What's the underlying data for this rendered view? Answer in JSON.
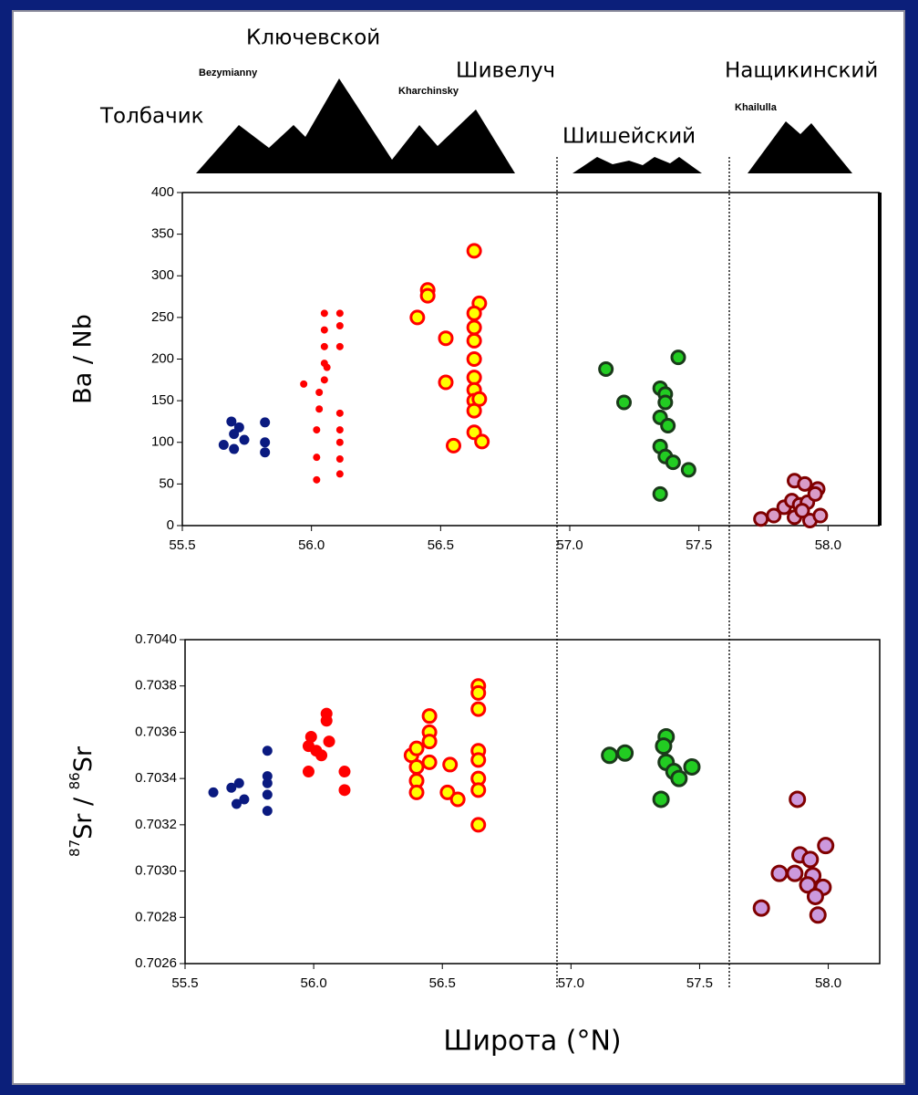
{
  "chart_data": [
    {
      "type": "scatter",
      "annotations": [
        "Ключевской",
        "Bezymianny",
        "Толбачик",
        "Kharchinsky",
        "Шивелуч",
        "Шишейский",
        "Khailulla",
        "Нащикинский"
      ],
      "y_label": "Ba / Nb",
      "xlim": [
        55.5,
        58.2
      ],
      "ylim": [
        0,
        400
      ],
      "xticks": [
        55.5,
        {
          "value": 56,
          "label": "56.0"
        },
        56.5,
        {
          "value": 57,
          "label": "57.0"
        },
        57.5,
        {
          "value": 58,
          "label": "58.0"
        }
      ],
      "yticks": [
        0,
        50,
        100,
        150,
        200,
        250,
        300,
        350,
        400
      ],
      "series": [
        {
          "color": "#0a1a80",
          "edgecolor": "#0a1a80",
          "x": [
            55.69,
            55.72,
            55.7,
            55.74,
            55.66,
            55.7,
            55.82,
            55.82,
            55.82
          ],
          "values": [
            125,
            118,
            110,
            103,
            97,
            92,
            124,
            100,
            88
          ]
        },
        {
          "color": "#ff0000",
          "edgecolor": "#ff0000",
          "x": [
            55.97,
            56.02,
            56.02,
            56.02,
            56.03,
            56.03,
            56.05,
            56.05,
            56.05,
            56.05,
            56.05,
            56.06,
            56.11,
            56.11,
            56.11,
            56.11,
            56.11,
            56.11,
            56.11,
            56.11
          ],
          "values": [
            170,
            55,
            82,
            115,
            140,
            160,
            175,
            195,
            215,
            235,
            255,
            190,
            255,
            240,
            215,
            135,
            115,
            100,
            80,
            62
          ]
        },
        {
          "color": "#ffff00",
          "edgecolor": "#ff0000",
          "x": [
            56.41,
            56.45,
            56.45,
            56.52,
            56.52,
            56.55,
            56.63,
            56.65,
            56.63,
            56.63,
            56.63,
            56.63,
            56.63,
            56.63,
            56.63,
            56.65,
            56.63,
            56.63,
            56.66
          ],
          "values": [
            250,
            283,
            276,
            225,
            172,
            96,
            330,
            267,
            255,
            238,
            222,
            200,
            178,
            163,
            150,
            152,
            138,
            112,
            101
          ]
        },
        {
          "color": "#22cc22",
          "edgecolor": "#1a3a1a",
          "x": [
            57.14,
            57.21,
            57.42,
            57.35,
            57.37,
            57.37,
            57.35,
            57.38,
            57.35,
            57.37,
            57.4,
            57.46,
            57.35
          ],
          "values": [
            188,
            148,
            202,
            165,
            158,
            148,
            130,
            120,
            95,
            83,
            76,
            67,
            38
          ]
        },
        {
          "color": "#d99cc8",
          "edgecolor": "#800000",
          "x": [
            57.74,
            57.79,
            57.83,
            57.87,
            57.91,
            57.86,
            57.89,
            57.92,
            57.96,
            57.95,
            57.87,
            57.93,
            57.97,
            57.9
          ],
          "values": [
            8,
            12,
            22,
            54,
            50,
            30,
            25,
            28,
            44,
            38,
            10,
            6,
            12,
            18
          ]
        }
      ]
    },
    {
      "type": "scatter",
      "y_label_parts": [
        "87",
        "Sr / ",
        "86",
        "Sr"
      ],
      "x_label": "Широта (°N)",
      "xlim": [
        55.5,
        58.2
      ],
      "ylim": [
        0.7026,
        0.704
      ],
      "xticks": [
        55.5,
        {
          "value": 56,
          "label": "56.0"
        },
        56.5,
        {
          "value": 57,
          "label": "57.0"
        },
        57.5,
        {
          "value": 58,
          "label": "58.0"
        }
      ],
      "yticks": [
        0.7026,
        0.7028,
        {
          "value": 0.703,
          "label": "0.7030"
        },
        0.7032,
        0.7034,
        0.7036,
        0.7038,
        {
          "value": 0.704,
          "label": "0.7040"
        }
      ],
      "series": [
        {
          "color": "#0a1a80",
          "edgecolor": "#0a1a80",
          "x": [
            55.61,
            55.68,
            55.71,
            55.73,
            55.7,
            55.82,
            55.82,
            55.82,
            55.82,
            55.82
          ],
          "values": [
            0.70334,
            0.70336,
            0.70338,
            0.70331,
            0.70329,
            0.70352,
            0.70341,
            0.70338,
            0.70333,
            0.70326
          ]
        },
        {
          "color": "#ff0000",
          "edgecolor": "#ff0000",
          "x": [
            55.98,
            55.98,
            55.99,
            56.01,
            56.03,
            56.05,
            56.05,
            56.06,
            56.12,
            56.12
          ],
          "values": [
            0.70343,
            0.70354,
            0.70358,
            0.70352,
            0.7035,
            0.70365,
            0.70368,
            0.70356,
            0.70343,
            0.70335
          ]
        },
        {
          "color": "#ffff00",
          "edgecolor": "#ff0000",
          "x": [
            56.38,
            56.4,
            56.4,
            56.4,
            56.4,
            56.45,
            56.45,
            56.45,
            56.45,
            56.53,
            56.52,
            56.56,
            56.64,
            56.64,
            56.64,
            56.64,
            56.64,
            56.64,
            56.64,
            56.64
          ],
          "values": [
            0.7035,
            0.70353,
            0.70345,
            0.70339,
            0.70334,
            0.70367,
            0.7036,
            0.70356,
            0.70347,
            0.70346,
            0.70334,
            0.70331,
            0.7038,
            0.70377,
            0.7037,
            0.70352,
            0.70348,
            0.7034,
            0.70335,
            0.7032
          ]
        },
        {
          "color": "#22cc22",
          "edgecolor": "#1a3a1a",
          "x": [
            57.15,
            57.21,
            57.37,
            57.36,
            57.37,
            57.4,
            57.42,
            57.47,
            57.35
          ],
          "values": [
            0.7035,
            0.70351,
            0.70358,
            0.70354,
            0.70347,
            0.70343,
            0.7034,
            0.70345,
            0.70331
          ]
        },
        {
          "color": "#cc99dd",
          "edgecolor": "#800000",
          "x": [
            57.88,
            57.99,
            57.89,
            57.93,
            57.81,
            57.87,
            57.94,
            57.92,
            57.98,
            57.95,
            57.74,
            57.96
          ],
          "values": [
            0.70331,
            0.70311,
            0.70307,
            0.70305,
            0.70299,
            0.70299,
            0.70298,
            0.70294,
            0.70293,
            0.70289,
            0.70284,
            0.70281
          ]
        }
      ]
    }
  ]
}
